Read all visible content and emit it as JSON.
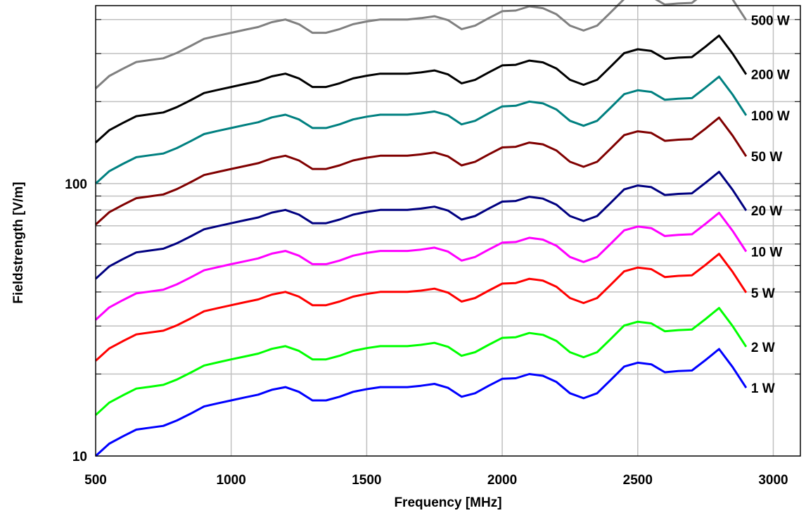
{
  "chart_data": {
    "type": "line",
    "title": "",
    "xlabel": "Frequency [MHz]",
    "ylabel": "Fieldstrength [V/m]",
    "xlim": [
      500,
      3100
    ],
    "ylim": [
      10,
      450
    ],
    "yscale": "log",
    "grid": true,
    "x_ticks": [
      500,
      1000,
      1500,
      2000,
      2500,
      3000
    ],
    "x_tick_labels": [
      "500",
      "1000",
      "1500",
      "2000",
      "2500",
      "3000"
    ],
    "y_tick_labels": [
      {
        "value": 10,
        "label": "10"
      },
      {
        "value": 100,
        "label": "100"
      }
    ],
    "x": [
      500,
      550,
      600,
      650,
      700,
      750,
      800,
      850,
      900,
      950,
      1000,
      1050,
      1100,
      1150,
      1200,
      1250,
      1300,
      1350,
      1400,
      1450,
      1500,
      1550,
      1600,
      1650,
      1700,
      1750,
      1800,
      1850,
      1900,
      1950,
      2000,
      2050,
      2100,
      2150,
      2200,
      2250,
      2300,
      2350,
      2400,
      2450,
      2500,
      2550,
      2600,
      2650,
      2700,
      2750,
      2800,
      2850,
      2900
    ],
    "base_values_1W": [
      10.0,
      11.1,
      11.8,
      12.5,
      12.7,
      12.9,
      13.5,
      14.3,
      15.2,
      15.6,
      16.0,
      16.4,
      16.8,
      17.5,
      17.9,
      17.2,
      16.0,
      16.0,
      16.5,
      17.2,
      17.6,
      17.9,
      17.9,
      17.9,
      18.1,
      18.4,
      17.8,
      16.5,
      17.0,
      18.1,
      19.2,
      19.3,
      20.0,
      19.7,
      18.7,
      17.0,
      16.3,
      17.0,
      19.0,
      21.3,
      22.0,
      21.7,
      20.3,
      20.5,
      20.6,
      22.5,
      24.7,
      21.2,
      17.8
    ],
    "series": [
      {
        "name": "1 W",
        "label": "1 W",
        "scale": 1.0,
        "color": "#0000ff"
      },
      {
        "name": "2 W",
        "label": "2 W",
        "scale": 1.414,
        "color": "#00ff00"
      },
      {
        "name": "5 W",
        "label": "5 W",
        "scale": 2.236,
        "color": "#ff0000"
      },
      {
        "name": "10 W",
        "label": "10 W",
        "scale": 3.162,
        "color": "#ff00ff"
      },
      {
        "name": "20 W",
        "label": "20 W",
        "scale": 4.472,
        "color": "#000080"
      },
      {
        "name": "50 W",
        "label": "50 W",
        "scale": 7.071,
        "color": "#800000"
      },
      {
        "name": "100 W",
        "label": "100 W",
        "scale": 10.0,
        "color": "#008080"
      },
      {
        "name": "200 W",
        "label": "200 W",
        "scale": 14.142,
        "color": "#000000"
      },
      {
        "name": "500 W",
        "label": "500 W",
        "scale": 22.361,
        "color": "#808080"
      }
    ]
  }
}
